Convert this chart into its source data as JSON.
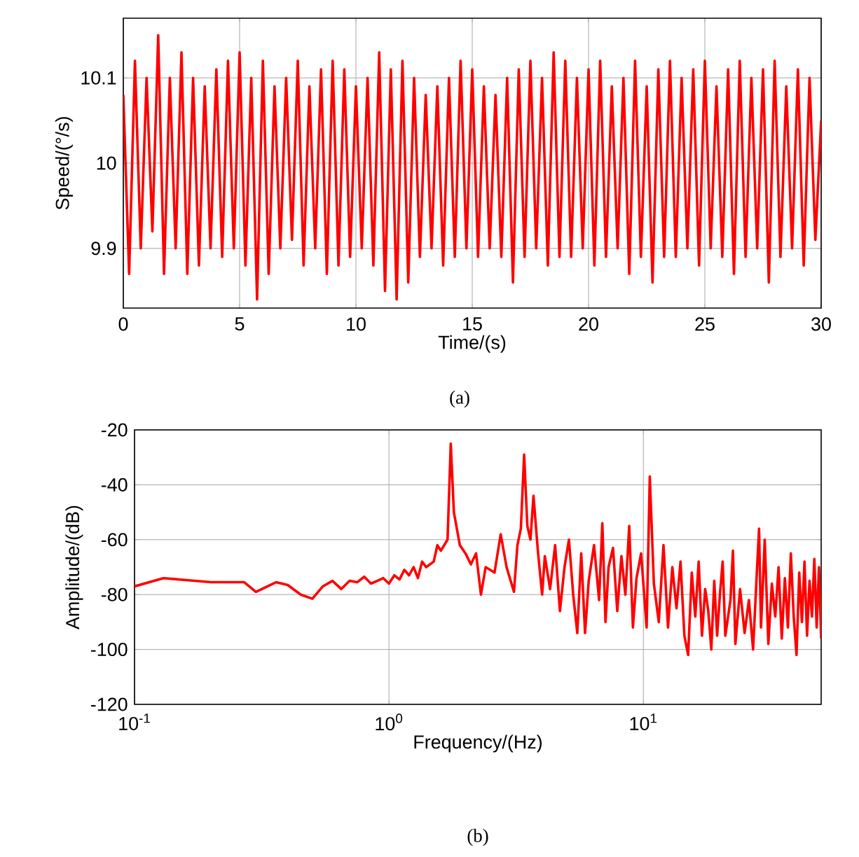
{
  "chart_data": [
    {
      "type": "line",
      "xlabel": "Time/(s)",
      "ylabel": "Speed/(°/s)",
      "annotations": [
        "(a)"
      ],
      "grid": true,
      "xlim": [
        0,
        30
      ],
      "ylim": [
        9.83,
        10.17
      ],
      "xticks": [
        0,
        5,
        10,
        15,
        20,
        25,
        30
      ],
      "yticks": [
        9.9,
        10,
        10.1
      ],
      "x": [
        0,
        0.25,
        0.5,
        0.75,
        1,
        1.25,
        1.5,
        1.75,
        2,
        2.25,
        2.5,
        2.75,
        3,
        3.25,
        3.5,
        3.75,
        4,
        4.25,
        4.5,
        4.75,
        5,
        5.25,
        5.5,
        5.75,
        6,
        6.25,
        6.5,
        6.75,
        7,
        7.25,
        7.5,
        7.75,
        8,
        8.25,
        8.5,
        8.75,
        9,
        9.25,
        9.5,
        9.75,
        10,
        10.25,
        10.5,
        10.75,
        11,
        11.25,
        11.5,
        11.75,
        12,
        12.25,
        12.5,
        12.75,
        13,
        13.25,
        13.5,
        13.75,
        14,
        14.25,
        14.5,
        14.75,
        15,
        15.25,
        15.5,
        15.75,
        16,
        16.25,
        16.5,
        16.75,
        17,
        17.25,
        17.5,
        17.75,
        18,
        18.25,
        18.5,
        18.75,
        19,
        19.25,
        19.5,
        19.75,
        20,
        20.25,
        20.5,
        20.75,
        21,
        21.25,
        21.5,
        21.75,
        22,
        22.25,
        22.5,
        22.75,
        23,
        23.25,
        23.5,
        23.75,
        24,
        24.25,
        24.5,
        24.75,
        25,
        25.25,
        25.5,
        25.75,
        26,
        26.25,
        26.5,
        26.75,
        27,
        27.25,
        27.5,
        27.75,
        28,
        28.25,
        28.5,
        28.75,
        29,
        29.25,
        29.5,
        29.75,
        30
      ],
      "series": [
        {
          "color": "#ff0000",
          "values": [
            10.08,
            9.87,
            10.12,
            9.9,
            10.1,
            9.92,
            10.15,
            9.87,
            10.1,
            9.9,
            10.13,
            9.87,
            10.1,
            9.88,
            10.09,
            9.9,
            10.11,
            9.89,
            10.12,
            9.9,
            10.13,
            9.88,
            10.1,
            9.84,
            10.12,
            9.87,
            10.09,
            9.9,
            10.1,
            9.91,
            10.12,
            9.88,
            10.09,
            9.9,
            10.11,
            9.87,
            10.12,
            9.88,
            10.11,
            9.89,
            10.09,
            9.9,
            10.1,
            9.88,
            10.13,
            9.85,
            10.11,
            9.84,
            10.12,
            9.86,
            10.1,
            9.89,
            10.08,
            9.9,
            10.09,
            9.88,
            10.1,
            9.89,
            10.12,
            9.9,
            10.11,
            9.89,
            10.09,
            9.9,
            10.08,
            9.89,
            10.1,
            9.86,
            10.11,
            9.89,
            10.12,
            9.9,
            10.1,
            9.88,
            10.13,
            9.89,
            10.12,
            9.89,
            10.1,
            9.9,
            10.11,
            9.88,
            10.12,
            9.89,
            10.09,
            9.9,
            10.1,
            9.87,
            10.12,
            9.89,
            10.09,
            9.86,
            10.11,
            9.89,
            10.12,
            9.89,
            10.1,
            9.9,
            10.11,
            9.88,
            10.12,
            9.9,
            10.09,
            9.89,
            10.11,
            9.87,
            10.12,
            9.89,
            10.1,
            9.9,
            10.11,
            9.86,
            10.12,
            9.89,
            10.09,
            9.9,
            10.11,
            9.88,
            10.1,
            9.91,
            10.05
          ]
        }
      ]
    },
    {
      "type": "line",
      "xlabel": "Frequency/(Hz)",
      "ylabel": "Amplitude/(dB)",
      "annotations": [
        "(b)"
      ],
      "grid": true,
      "log": "x",
      "xlim": [
        0.1,
        50
      ],
      "ylim": [
        -120,
        -20
      ],
      "xticks": [
        {
          "value": 0.1,
          "label": "10$^{-1}$"
        },
        {
          "value": 1,
          "label": "10$^{0}$"
        },
        {
          "value": 10,
          "label": "10$^{1}$"
        }
      ],
      "yticks": [
        -120,
        -100,
        -80,
        -60,
        -40,
        -20
      ],
      "x": [
        0.1,
        0.13,
        0.2,
        0.27,
        0.3,
        0.36,
        0.4,
        0.45,
        0.5,
        0.55,
        0.6,
        0.65,
        0.7,
        0.75,
        0.8,
        0.85,
        0.9,
        0.95,
        1.0,
        1.05,
        1.1,
        1.15,
        1.2,
        1.25,
        1.3,
        1.35,
        1.4,
        1.5,
        1.55,
        1.6,
        1.7,
        1.75,
        1.8,
        1.9,
        2.0,
        2.1,
        2.2,
        2.3,
        2.4,
        2.6,
        2.75,
        2.9,
        3.1,
        3.2,
        3.3,
        3.4,
        3.5,
        3.6,
        3.7,
        3.85,
        4.0,
        4.1,
        4.3,
        4.5,
        4.7,
        4.9,
        5.1,
        5.3,
        5.5,
        5.7,
        5.9,
        6.1,
        6.4,
        6.7,
        6.9,
        7.1,
        7.3,
        7.6,
        7.9,
        8.2,
        8.5,
        8.8,
        9.1,
        9.4,
        9.8,
        10.3,
        10.6,
        11,
        11.5,
        12,
        12.5,
        13,
        13.5,
        14,
        14.5,
        15,
        15.5,
        16,
        16.5,
        17,
        17.5,
        18,
        18.5,
        19,
        19.5,
        20,
        20.5,
        21,
        22,
        22.5,
        23,
        24,
        25,
        26,
        27,
        28,
        28.5,
        29,
        30,
        31,
        32,
        33,
        34,
        35,
        36,
        37,
        38,
        39,
        40,
        41,
        42,
        43,
        44,
        45,
        46,
        47,
        48,
        49,
        50
      ],
      "series": [
        {
          "color": "#ff0000",
          "values": [
            -77,
            -74,
            -75.5,
            -75.5,
            -79,
            -75.5,
            -76.5,
            -80,
            -81.5,
            -77,
            -75,
            -78,
            -75,
            -75.5,
            -73.5,
            -76,
            -75,
            -74,
            -76,
            -73,
            -74.5,
            -71,
            -73,
            -70,
            -74,
            -68,
            -70,
            -68,
            -62,
            -64,
            -60,
            -25,
            -50,
            -62,
            -65,
            -69,
            -65,
            -80,
            -70,
            -72,
            -58,
            -70,
            -79,
            -62,
            -56,
            -29,
            -55,
            -60,
            -44,
            -64,
            -80,
            -66,
            -78,
            -62,
            -86,
            -70,
            -60,
            -80,
            -94,
            -65,
            -94,
            -75,
            -62,
            -82,
            -54,
            -90,
            -70,
            -63,
            -86,
            -66,
            -80,
            -55,
            -92,
            -74,
            -65,
            -92,
            -37,
            -76,
            -90,
            -62,
            -92,
            -70,
            -85,
            -68,
            -95,
            -102,
            -72,
            -88,
            -68,
            -95,
            -78,
            -86,
            -100,
            -75,
            -95,
            -80,
            -68,
            -95,
            -82,
            -64,
            -98,
            -78,
            -94,
            -82,
            -100,
            -70,
            -56,
            -92,
            -60,
            -98,
            -76,
            -88,
            -70,
            -96,
            -74,
            -92,
            -65,
            -88,
            -102,
            -72,
            -90,
            -68,
            -95,
            -75,
            -88,
            -67,
            -92,
            -70,
            -96
          ]
        }
      ]
    }
  ]
}
